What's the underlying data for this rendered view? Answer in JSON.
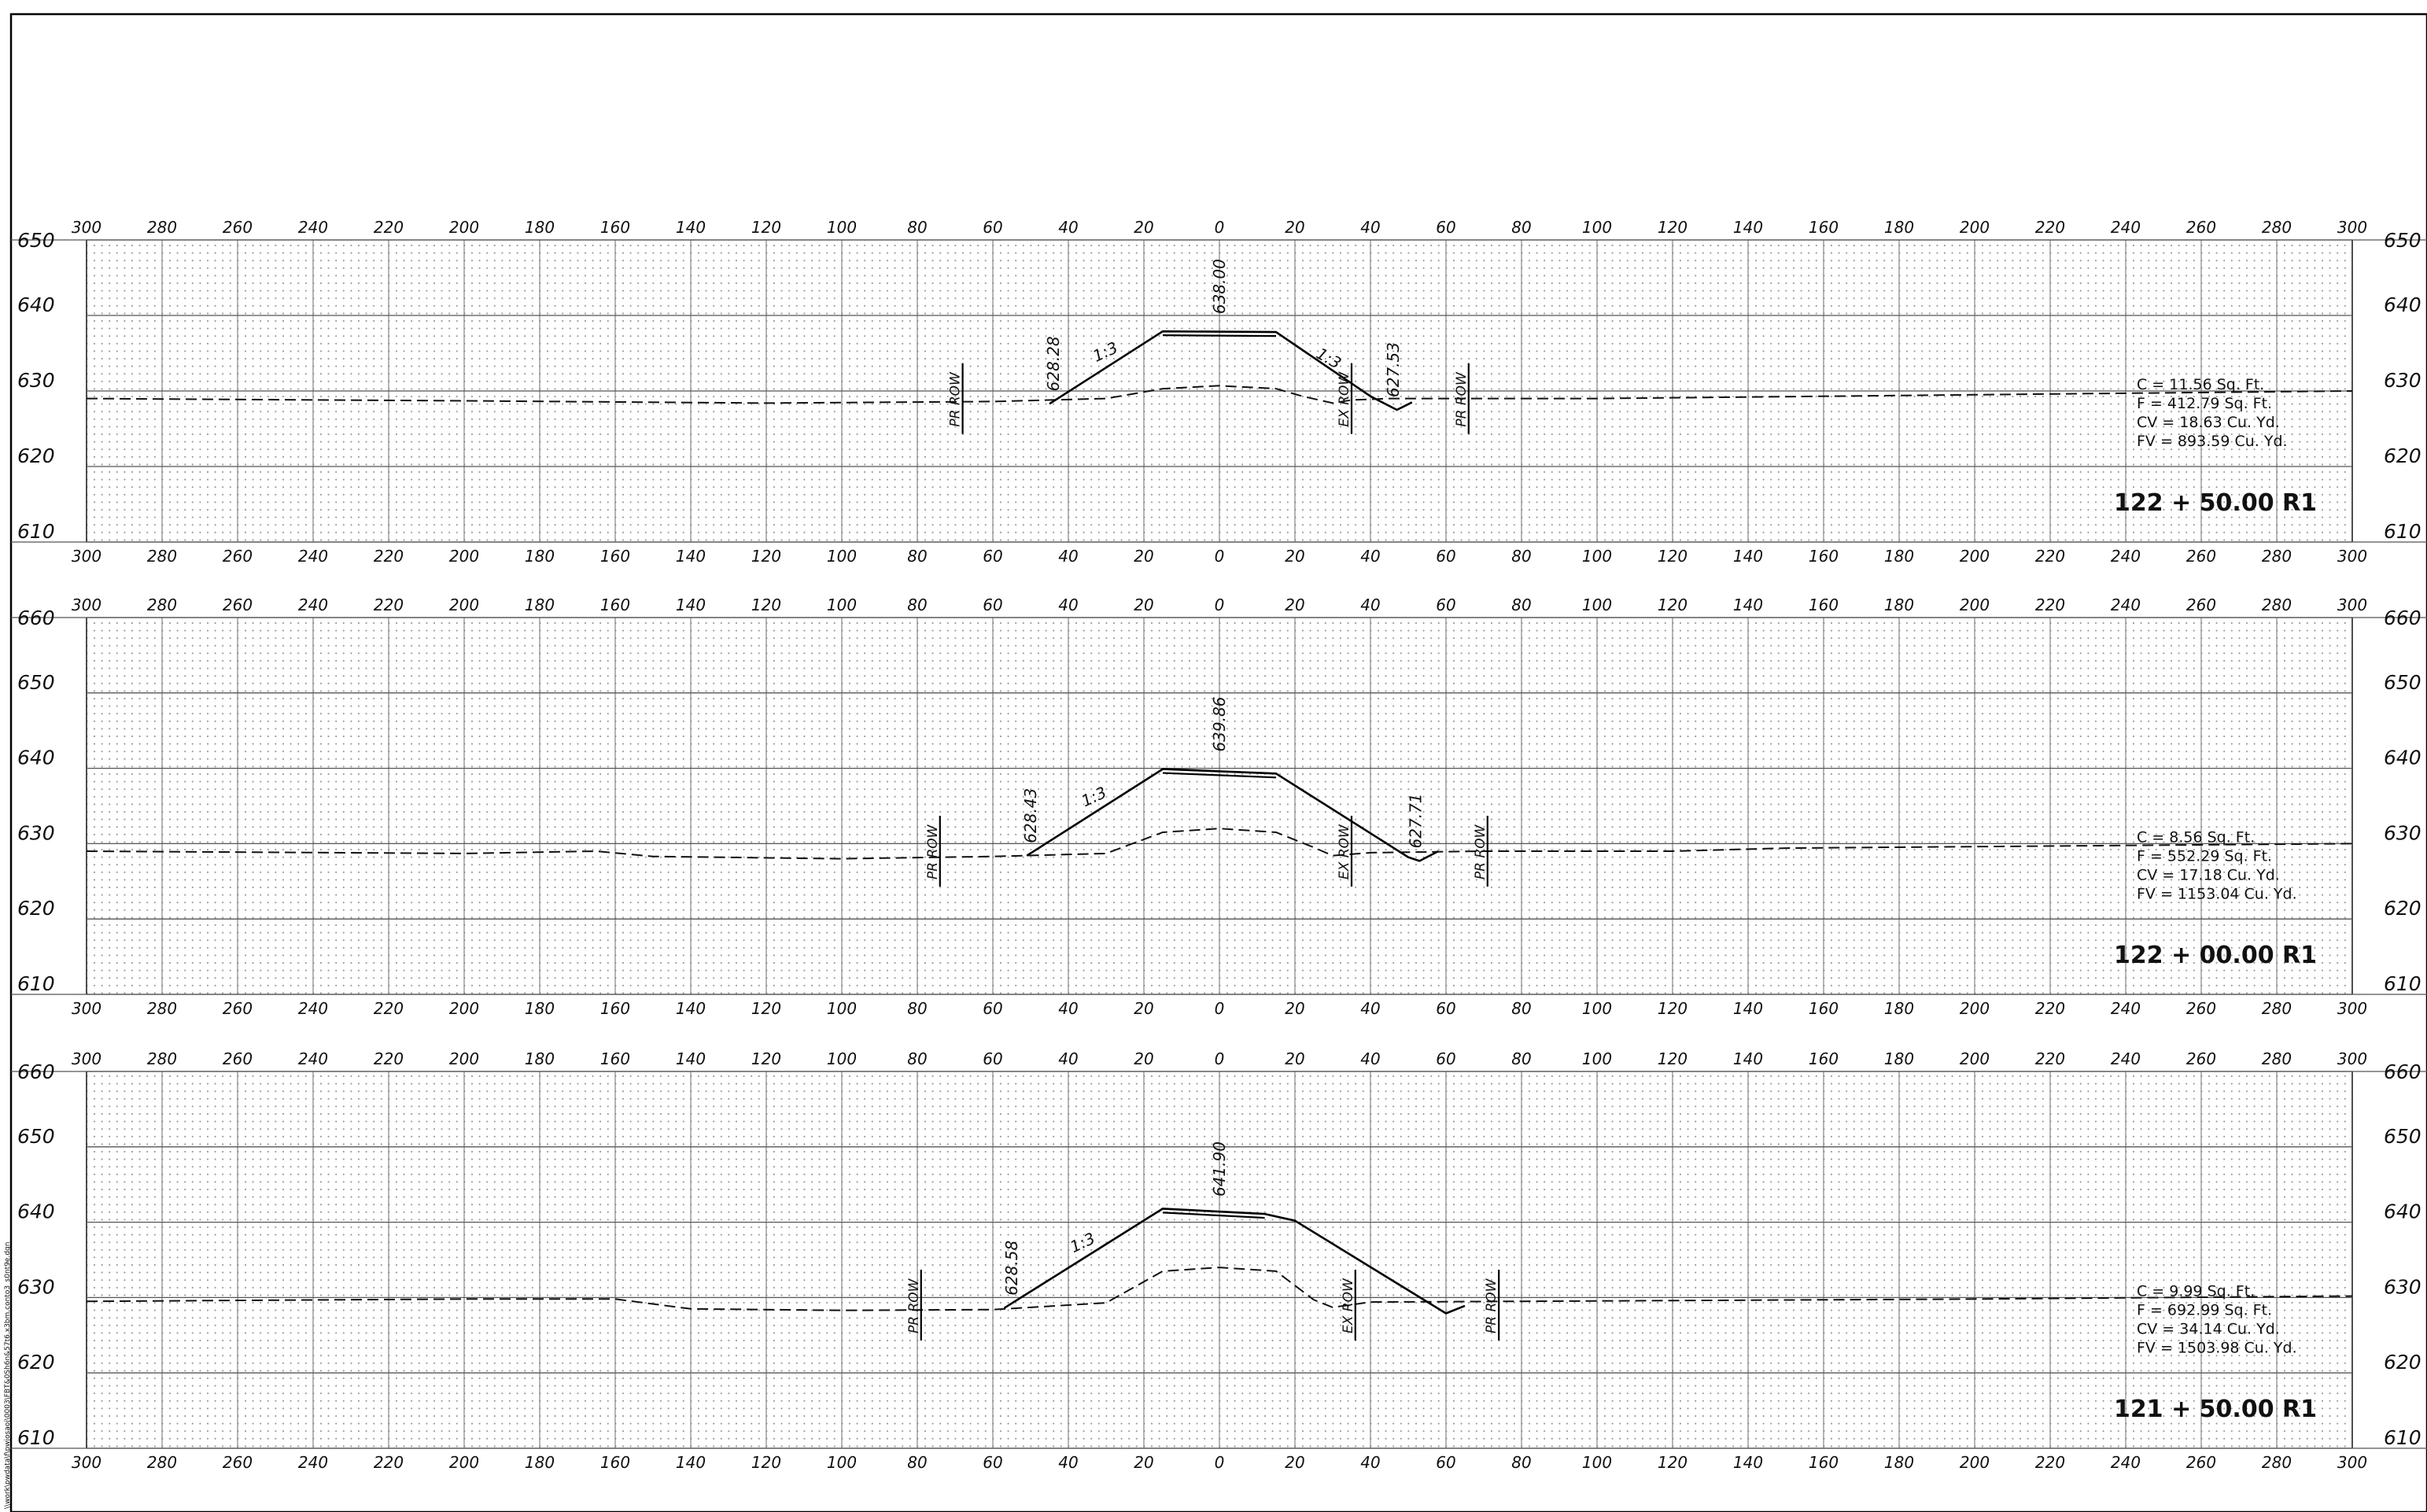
{
  "sheet": {
    "side_path": "\\\\work\\pwdata\\f\\pwjosaoj\\0003\\FBT&0Sh6n&57t6.x3bm.conto3_s0nt9e.dgn",
    "offset_labels": [
      "300",
      "280",
      "260",
      "240",
      "220",
      "200",
      "180",
      "160",
      "140",
      "120",
      "100",
      "80",
      "60",
      "40",
      "20",
      "0",
      "20",
      "40",
      "60",
      "80",
      "100",
      "120",
      "140",
      "160",
      "180",
      "200",
      "220",
      "240",
      "260",
      "280",
      "300"
    ]
  },
  "chart_data": [
    {
      "type": "cross-section",
      "station": "122 + 50.00  R1",
      "x_range": [
        -300,
        300
      ],
      "ylim": [
        610,
        650
      ],
      "y_labels": [
        "650",
        "640",
        "630",
        "620",
        "610"
      ],
      "existing_ground": [
        [
          -300,
          629.0
        ],
        [
          -200,
          628.7
        ],
        [
          -120,
          628.4
        ],
        [
          -60,
          628.6
        ],
        [
          -30,
          629.0
        ],
        [
          -15,
          630.3
        ],
        [
          0,
          630.7
        ],
        [
          15,
          630.3
        ],
        [
          22,
          629.3
        ],
        [
          30,
          628.4
        ],
        [
          35,
          628.8
        ],
        [
          45,
          629.0
        ],
        [
          100,
          629.0
        ],
        [
          200,
          629.5
        ],
        [
          300,
          630.0
        ]
      ],
      "proposed": [
        [
          -45,
          628.3
        ],
        [
          -15,
          637.9
        ],
        [
          15,
          637.8
        ],
        [
          40,
          629.3
        ],
        [
          47,
          627.5
        ],
        [
          51,
          628.5
        ]
      ],
      "elevation_labels": [
        {
          "text": "628.28",
          "x": -44
        },
        {
          "text": "638.00",
          "x": 0
        },
        {
          "text": "627.53",
          "x": 46
        }
      ],
      "slope_labels": [
        {
          "text": "1:3",
          "x": -31
        },
        {
          "text": "1:3",
          "x": 27
        }
      ],
      "row_markers": [
        {
          "text": "PR ROW",
          "x": -68
        },
        {
          "text": "EX ROW",
          "x": 35
        },
        {
          "text": "PR ROW",
          "x": 66
        }
      ],
      "quantities": [
        "C = 11.56 Sq. Ft.",
        "F = 412.79 Sq. Ft.",
        "CV = 18.63 Cu. Yd.",
        "FV = 893.59 Cu. Yd."
      ]
    },
    {
      "type": "cross-section",
      "station": "122 + 00.00  R1",
      "x_range": [
        -300,
        300
      ],
      "ylim": [
        610,
        660
      ],
      "y_labels": [
        "660",
        "650",
        "640",
        "630",
        "620",
        "610"
      ],
      "existing_ground": [
        [
          -300,
          629.0
        ],
        [
          -200,
          628.7
        ],
        [
          -165,
          629.0
        ],
        [
          -150,
          628.3
        ],
        [
          -100,
          628.0
        ],
        [
          -60,
          628.3
        ],
        [
          -30,
          628.7
        ],
        [
          -15,
          631.5
        ],
        [
          0,
          632.0
        ],
        [
          15,
          631.5
        ],
        [
          25,
          629.5
        ],
        [
          30,
          628.4
        ],
        [
          40,
          628.8
        ],
        [
          70,
          629.0
        ],
        [
          120,
          629.0
        ],
        [
          150,
          629.4
        ],
        [
          200,
          629.6
        ],
        [
          300,
          630.0
        ]
      ],
      "proposed": [
        [
          -51,
          628.4
        ],
        [
          -15,
          639.9
        ],
        [
          15,
          639.3
        ],
        [
          50,
          628.2
        ],
        [
          53,
          627.7
        ],
        [
          58,
          629.0
        ]
      ],
      "elevation_labels": [
        {
          "text": "628.43",
          "x": -50
        },
        {
          "text": "639.86",
          "x": 0
        },
        {
          "text": "627.71",
          "x": 52
        }
      ],
      "slope_labels": [
        {
          "text": "1:3",
          "x": -34
        }
      ],
      "row_markers": [
        {
          "text": "PR ROW",
          "x": -74
        },
        {
          "text": "EX ROW",
          "x": 35
        },
        {
          "text": "PR ROW",
          "x": 71
        }
      ],
      "quantities": [
        "C = 8.56 Sq. Ft.",
        "F = 552.29 Sq. Ft.",
        "CV = 17.18 Cu. Yd.",
        "FV = 1153.04 Cu. Yd."
      ]
    },
    {
      "type": "cross-section",
      "station": "121 + 50.00  R1",
      "x_range": [
        -300,
        300
      ],
      "ylim": [
        610,
        660
      ],
      "y_labels": [
        "660",
        "650",
        "640",
        "630",
        "620",
        "610"
      ],
      "existing_ground": [
        [
          -300,
          629.5
        ],
        [
          -200,
          629.8
        ],
        [
          -160,
          629.8
        ],
        [
          -140,
          628.5
        ],
        [
          -100,
          628.3
        ],
        [
          -60,
          628.4
        ],
        [
          -30,
          629.3
        ],
        [
          -15,
          633.5
        ],
        [
          0,
          634.0
        ],
        [
          15,
          633.5
        ],
        [
          25,
          629.7
        ],
        [
          30,
          628.7
        ],
        [
          40,
          629.4
        ],
        [
          80,
          629.5
        ],
        [
          200,
          629.8
        ],
        [
          300,
          630.2
        ]
      ],
      "proposed": [
        [
          -57,
          628.6
        ],
        [
          -15,
          641.8
        ],
        [
          12,
          641.1
        ],
        [
          20,
          640.2
        ],
        [
          60,
          627.9
        ],
        [
          65,
          628.9
        ]
      ],
      "elevation_labels": [
        {
          "text": "628.58",
          "x": -55
        },
        {
          "text": "641.90",
          "x": 0
        }
      ],
      "slope_labels": [
        {
          "text": "1:3",
          "x": -37
        }
      ],
      "row_markers": [
        {
          "text": "PR ROW",
          "x": -79
        },
        {
          "text": "EX ROW",
          "x": 36
        },
        {
          "text": "PR ROW",
          "x": 74
        }
      ],
      "quantities": [
        "C = 9.99 Sq. Ft.",
        "F = 692.99 Sq. Ft.",
        "CV = 34.14 Cu. Yd.",
        "FV = 1503.98 Cu. Yd."
      ]
    }
  ]
}
